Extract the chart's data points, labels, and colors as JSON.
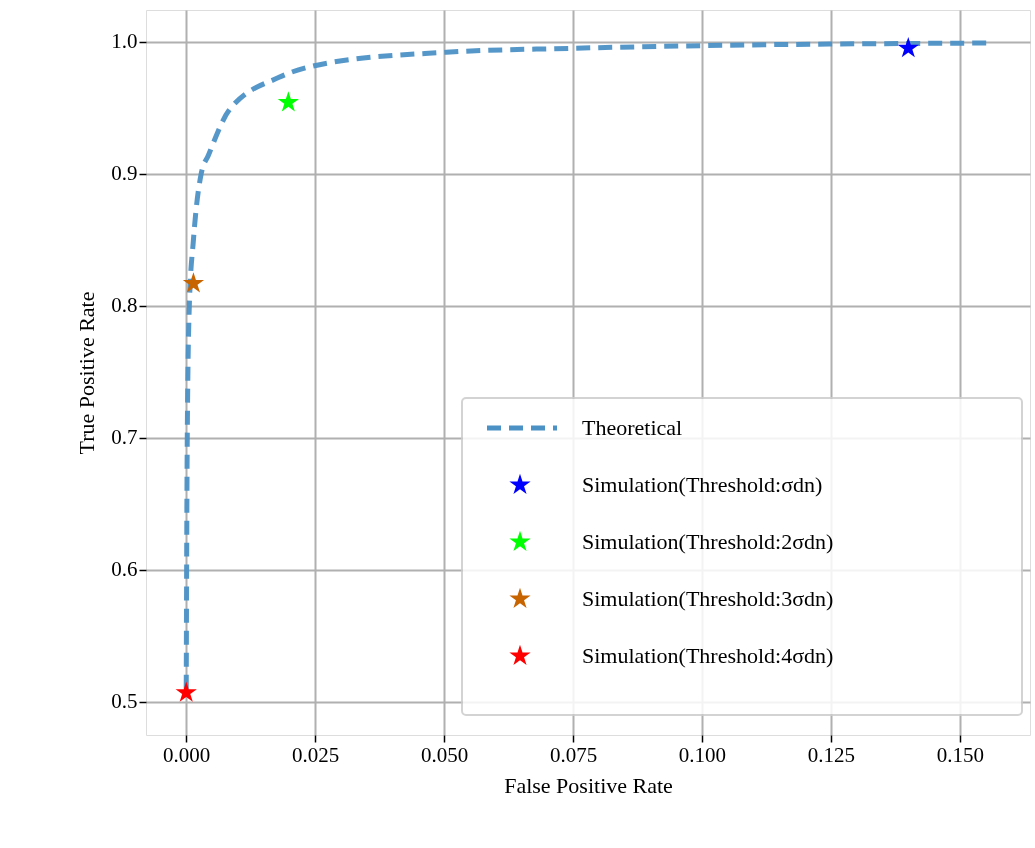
{
  "chart_data": {
    "type": "line",
    "xlabel": "False Positive Rate",
    "ylabel": "True Positive Rate",
    "xlim": [
      -0.0078,
      0.1636
    ],
    "ylim": [
      0.475,
      1.024
    ],
    "xticks": [
      {
        "value": 0,
        "label": "0.000"
      },
      {
        "value": 0.025,
        "label": "0.025"
      },
      {
        "value": 0.05,
        "label": "0.050"
      },
      {
        "value": 0.075,
        "label": "0.075"
      },
      {
        "value": 0.1,
        "label": "0.100"
      },
      {
        "value": 0.125,
        "label": "0.125"
      },
      {
        "value": 0.15,
        "label": "0.150"
      }
    ],
    "yticks": [
      0.5,
      0.6,
      0.7,
      0.8,
      0.9,
      {
        "value": 1.0,
        "label": "1.0"
      }
    ],
    "grid": true,
    "legend": "bottom right",
    "series": [
      {
        "name": "Theoretical",
        "line_style": "dashed",
        "color": "#4c91c6",
        "x": [
          0,
          0.0002,
          0.0006,
          0.0014,
          0.0029,
          0.0043,
          0.0083,
          0.018,
          0.0277,
          0.0504,
          0.075,
          0.1,
          0.156
        ],
        "values": [
          0.51,
          0.7,
          0.8,
          0.85,
          0.9,
          0.914,
          0.948,
          0.973,
          0.984,
          0.992,
          0.995,
          0.997,
          0.999
        ]
      },
      {
        "name": "Simulation(Threshold:σdn)",
        "type": "scatter",
        "marker": "star",
        "color": "#0000ff",
        "x": [
          0.14
        ],
        "values": [
          0.995
        ]
      },
      {
        "name": "Simulation(Threshold:2σdn)",
        "type": "scatter",
        "marker": "star",
        "color": "#00ff00",
        "x": [
          0.0198
        ],
        "values": [
          0.954
        ]
      },
      {
        "name": "Simulation(Threshold:3σdn)",
        "type": "scatter",
        "marker": "star",
        "color": "#c86400",
        "x": [
          0.0014
        ],
        "values": [
          0.817
        ]
      },
      {
        "name": "Simulation(Threshold:4σdn)",
        "type": "scatter",
        "marker": "star",
        "color": "#ff0000",
        "x": [
          0.0
        ],
        "values": [
          0.507
        ]
      }
    ]
  }
}
